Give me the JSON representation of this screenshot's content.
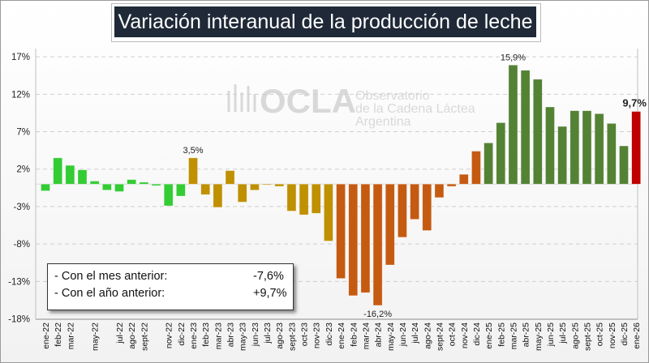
{
  "chart_data": {
    "type": "bar",
    "title": "Variación interanual de la producción de leche",
    "xlabel": "",
    "ylabel": "",
    "ylim": [
      -18,
      17
    ],
    "yticks": [
      "17%",
      "12%",
      "7%",
      "2%",
      "-3%",
      "-8%",
      "-13%",
      "-18%"
    ],
    "ytick_values": [
      17,
      12,
      7,
      2,
      -3,
      -8,
      -13,
      -18
    ],
    "grid": true,
    "categories": [
      "ene-22",
      "feb-22",
      "mar-22",
      "abr-22",
      "may-22",
      "jun-22",
      "jul-22",
      "ago-22",
      "sept-22",
      "oct-22",
      "nov-22",
      "dic-22",
      "ene-23",
      "feb-23",
      "mar-23",
      "abr-23",
      "may-23",
      "jun-23",
      "jul-23",
      "ago-23",
      "sept-23",
      "oct-23",
      "nov-23",
      "dic-23",
      "ene-24",
      "feb-24",
      "mar-24",
      "abr-24",
      "may-24",
      "jun-24",
      "jul-24",
      "ago-24",
      "sept-24",
      "oct-24",
      "nov-24",
      "dic-24",
      "ene-25",
      "feb-25",
      "mar-25",
      "abr-25",
      "may-25",
      "jun-25",
      "jul-25",
      "ago-25",
      "sept-25",
      "oct-25",
      "nov-25",
      "dic-25",
      "ene-26"
    ],
    "tick_labels": [
      "ene-22",
      "feb-22",
      "mar-22",
      "may-22",
      "jul-22",
      "ago-22",
      "sept-22",
      "nov-22",
      "dic-22",
      "ene-23",
      "feb-23",
      "mar-23",
      "abr-23",
      "may-23",
      "jun-23",
      "jul-23",
      "ago-23",
      "sept-23",
      "oct-23",
      "nov-23",
      "dic-23",
      "ene-24",
      "feb-24",
      "mar-24",
      "abr-24",
      "may-24",
      "jun-24",
      "jul-24",
      "ago-24",
      "sept-24",
      "oct-24",
      "nov-24",
      "dic-24",
      "ene-25",
      "feb-25",
      "mar-25",
      "abr-25",
      "may-25",
      "jun-25",
      "jul-25",
      "ago-25",
      "sept-25",
      "oct-25",
      "nov-25",
      "dic-25",
      "ene-26"
    ],
    "values": [
      -0.9,
      3.5,
      2.5,
      1.9,
      0.4,
      -0.8,
      -1.0,
      0.6,
      0.25,
      -0.2,
      -2.9,
      -1.6,
      3.5,
      -1.4,
      -3.1,
      1.8,
      -2.4,
      -0.8,
      -0.1,
      -0.3,
      -3.6,
      -4.1,
      -3.9,
      -7.6,
      -12.6,
      -14.9,
      -14.5,
      -16.2,
      -10.8,
      -7.1,
      -4.7,
      -6.2,
      -1.8,
      -0.3,
      1.3,
      4.4,
      5.5,
      8.2,
      15.9,
      15.2,
      14.0,
      10.3,
      7.7,
      9.8,
      9.8,
      9.4,
      8.1,
      5.1,
      9.7
    ],
    "bar_colors_by_year": {
      "2022": "#33cc33",
      "2023": "#bf9000",
      "2024": "#c55a11",
      "2025": "#548235",
      "2026": "#c00000"
    },
    "annotations": [
      {
        "category": "ene-23",
        "text": "3,5%"
      },
      {
        "category": "abr-24",
        "text": "-16,2%"
      },
      {
        "category": "mar-25",
        "text": "15,9%"
      },
      {
        "category": "ene-26",
        "text": "9,7%"
      }
    ]
  },
  "legend": {
    "rows": [
      {
        "label": "- Con el mes anterior:",
        "value": "-7,6%"
      },
      {
        "label": "- Con el año anterior:",
        "value": "+9,7%"
      }
    ]
  },
  "watermark": {
    "brand": "OCLA",
    "line1": "Observatorio",
    "line2": "de la Cadena Láctea",
    "line3": "Argentina"
  }
}
